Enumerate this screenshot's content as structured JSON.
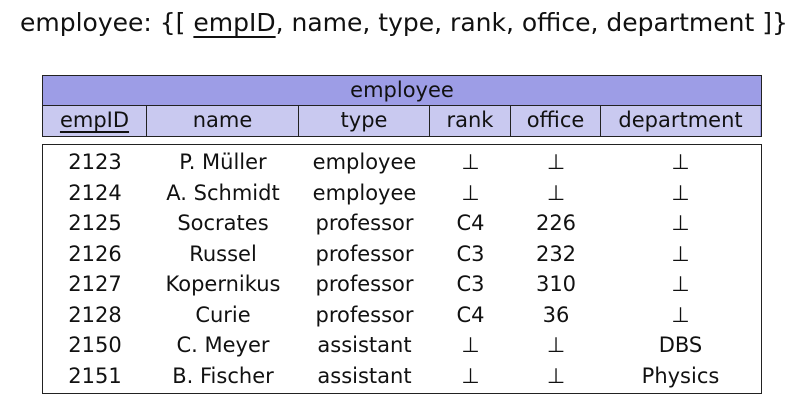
{
  "schema": {
    "prefix": "employee: {[ ",
    "key": "empID",
    "rest": ", name, type, rank, office, department ]}"
  },
  "table": {
    "title": "employee",
    "columns": [
      "empID",
      "name",
      "type",
      "rank",
      "office",
      "department"
    ],
    "rows": [
      [
        "2123",
        "P. Müller",
        "employee",
        "⊥",
        "⊥",
        "⊥"
      ],
      [
        "2124",
        "A. Schmidt",
        "employee",
        "⊥",
        "⊥",
        "⊥"
      ],
      [
        "2125",
        "Socrates",
        "professor",
        "C4",
        "226",
        "⊥"
      ],
      [
        "2126",
        "Russel",
        "professor",
        "C3",
        "232",
        "⊥"
      ],
      [
        "2127",
        "Kopernikus",
        "professor",
        "C3",
        "310",
        "⊥"
      ],
      [
        "2128",
        "Curie",
        "professor",
        "C4",
        "36",
        "⊥"
      ],
      [
        "2150",
        "C. Meyer",
        "assistant",
        "⊥",
        "⊥",
        "DBS"
      ],
      [
        "2151",
        "B. Fischer",
        "assistant",
        "⊥",
        "⊥",
        "Physics"
      ]
    ]
  },
  "colors": {
    "header_band": "#9d9de6",
    "header_cell": "#c9c9f0"
  }
}
